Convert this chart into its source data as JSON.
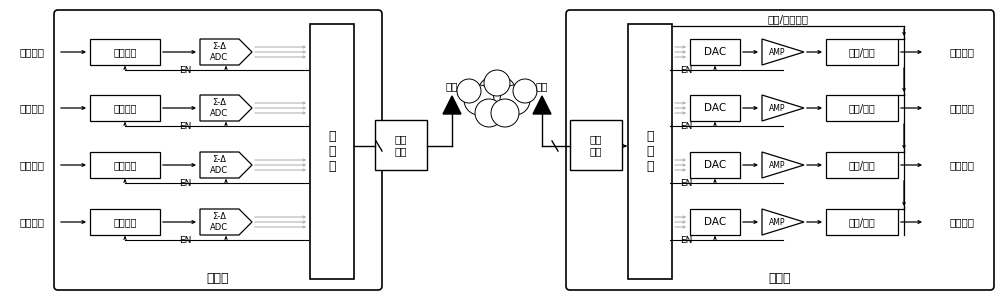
{
  "fig_width": 10.0,
  "fig_height": 3.06,
  "channels": 4,
  "signal_label": "模拟信号",
  "analog_ch_label": "模拟通道",
  "adc_label": "Σ-Δ\nADC",
  "collector_label": "采集器",
  "ctrl_label": "控\n制\n器",
  "wl_label": "无线\n模块",
  "ant_label": "天线",
  "dac_label": "DAC",
  "amp_label": "AMP",
  "vc_label": "电压/电流",
  "vc_sel_label": "电压/电流选择",
  "receiver_label": "接收器",
  "out_label": "模拟输出",
  "en_label": "EN",
  "bg": "#ffffff"
}
